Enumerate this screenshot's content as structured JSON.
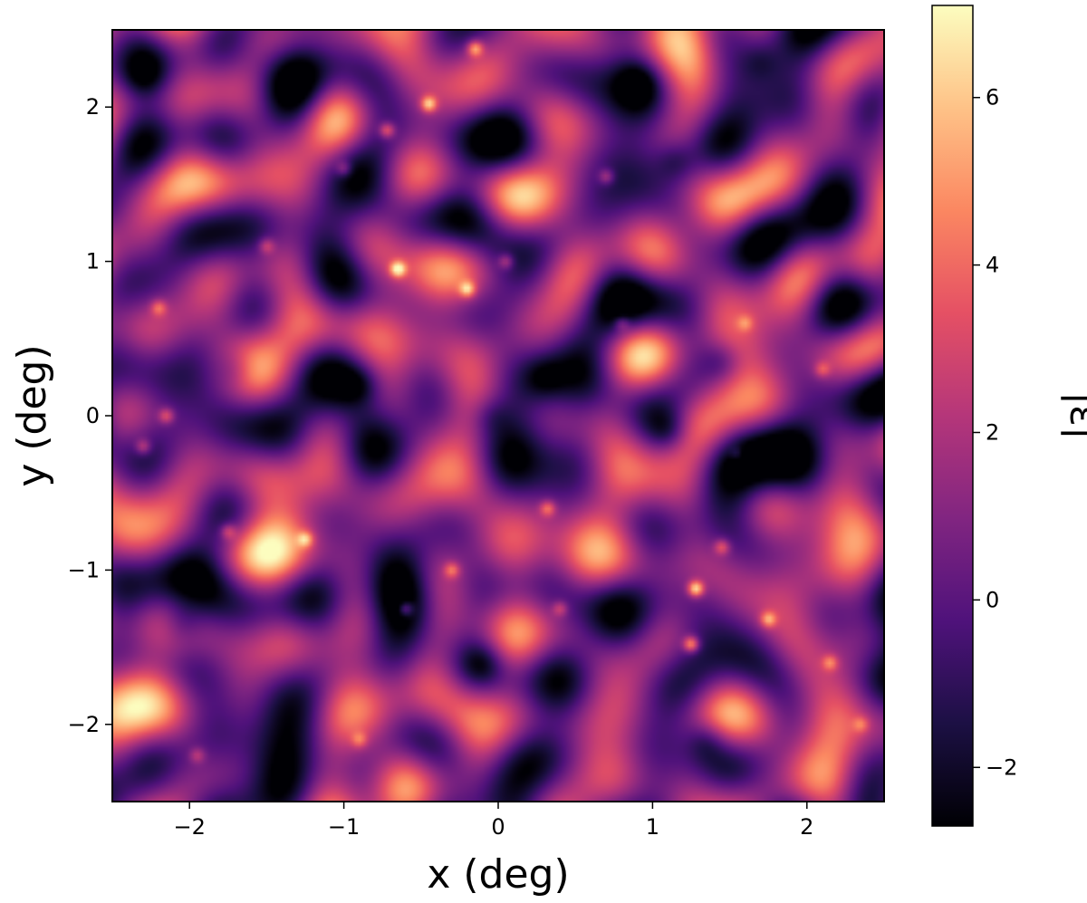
{
  "chart_data": {
    "type": "heatmap",
    "title": "",
    "xlabel": "x (deg)",
    "ylabel": "y (deg)",
    "xlim": [
      -2.5,
      2.5
    ],
    "ylim": [
      -2.5,
      2.5
    ],
    "x_ticks": [
      -2,
      -1,
      0,
      1,
      2
    ],
    "x_tick_labels": [
      "−2",
      "−1",
      "0",
      "1",
      "2"
    ],
    "y_ticks": [
      -2,
      -1,
      0,
      1,
      2
    ],
    "y_tick_labels": [
      "−2",
      "−1",
      "0",
      "1",
      "2"
    ],
    "colorbar": {
      "label": "|ε|",
      "range": [
        -2.7,
        7.1
      ],
      "ticks": [
        -2,
        0,
        2,
        4,
        6
      ],
      "tick_labels": [
        "−2",
        "0",
        "2",
        "4",
        "6"
      ],
      "colormap": "magma",
      "colormap_stops": [
        "#000004",
        "#1c1044",
        "#4f127b",
        "#812581",
        "#b5367a",
        "#e55064",
        "#fb8761",
        "#fec287",
        "#fcfdbf"
      ]
    },
    "grid": false,
    "peaks": [
      {
        "x": 1.28,
        "y": -1.12,
        "value": 6.8
      },
      {
        "x": -0.65,
        "y": 0.95,
        "value": 6.4
      },
      {
        "x": 1.25,
        "y": -1.48,
        "value": 6.0
      },
      {
        "x": -0.45,
        "y": 2.02,
        "value": 5.8
      },
      {
        "x": -0.15,
        "y": 2.38,
        "value": 5.4
      },
      {
        "x": -0.2,
        "y": 0.82,
        "value": 5.2
      },
      {
        "x": -0.72,
        "y": 1.85,
        "value": 4.8
      },
      {
        "x": 1.75,
        "y": -1.32,
        "value": 4.7
      },
      {
        "x": -1.25,
        "y": -0.8,
        "value": 4.6
      },
      {
        "x": -0.6,
        "y": -1.25,
        "value": 4.5
      },
      {
        "x": 0.32,
        "y": -0.6,
        "value": 4.4
      },
      {
        "x": -2.15,
        "y": 0.0,
        "value": 4.2
      },
      {
        "x": -2.2,
        "y": 0.7,
        "value": 4.0
      },
      {
        "x": 1.45,
        "y": -0.85,
        "value": 4.2
      },
      {
        "x": 2.15,
        "y": -1.6,
        "value": 3.9
      },
      {
        "x": -0.3,
        "y": -1.0,
        "value": 4.1
      },
      {
        "x": -2.3,
        "y": -0.2,
        "value": 3.9
      },
      {
        "x": -1.75,
        "y": -0.75,
        "value": 3.7
      },
      {
        "x": 0.7,
        "y": 1.55,
        "value": 3.8
      },
      {
        "x": -1.5,
        "y": 1.1,
        "value": 3.6
      },
      {
        "x": 0.05,
        "y": 1.0,
        "value": 3.8
      },
      {
        "x": 0.8,
        "y": 0.6,
        "value": 3.3
      },
      {
        "x": -1.0,
        "y": 1.6,
        "value": 3.5
      },
      {
        "x": 2.1,
        "y": 0.3,
        "value": 3.4
      },
      {
        "x": 0.4,
        "y": -1.25,
        "value": 3.6
      },
      {
        "x": 1.55,
        "y": -0.25,
        "value": 3.1
      },
      {
        "x": -0.9,
        "y": -2.1,
        "value": 3.4
      },
      {
        "x": -1.95,
        "y": -2.2,
        "value": 3.3
      },
      {
        "x": 2.35,
        "y": -2.0,
        "value": 3.2
      },
      {
        "x": 1.6,
        "y": 0.6,
        "value": 3.1
      }
    ],
    "troughs": [
      {
        "x": 1.1,
        "y": -0.1,
        "value": -2.5
      },
      {
        "x": 1.35,
        "y": -2.1,
        "value": -2.6
      },
      {
        "x": -1.7,
        "y": 0.3,
        "value": -2.4
      },
      {
        "x": 1.15,
        "y": 1.65,
        "value": -2.4
      },
      {
        "x": -0.9,
        "y": 0.2,
        "value": -2.3
      },
      {
        "x": 1.45,
        "y": 0.35,
        "value": -2.3
      },
      {
        "x": -2.05,
        "y": -1.35,
        "value": -2.2
      },
      {
        "x": 0.3,
        "y": 0.25,
        "value": -2.1
      },
      {
        "x": -2.3,
        "y": 2.2,
        "value": -2.0
      },
      {
        "x": 0.9,
        "y": 2.15,
        "value": -2.2
      },
      {
        "x": 1.7,
        "y": 2.3,
        "value": -2.1
      },
      {
        "x": -0.1,
        "y": -1.6,
        "value": -2.0
      },
      {
        "x": -0.05,
        "y": 0.0,
        "value": -2.0
      }
    ]
  }
}
